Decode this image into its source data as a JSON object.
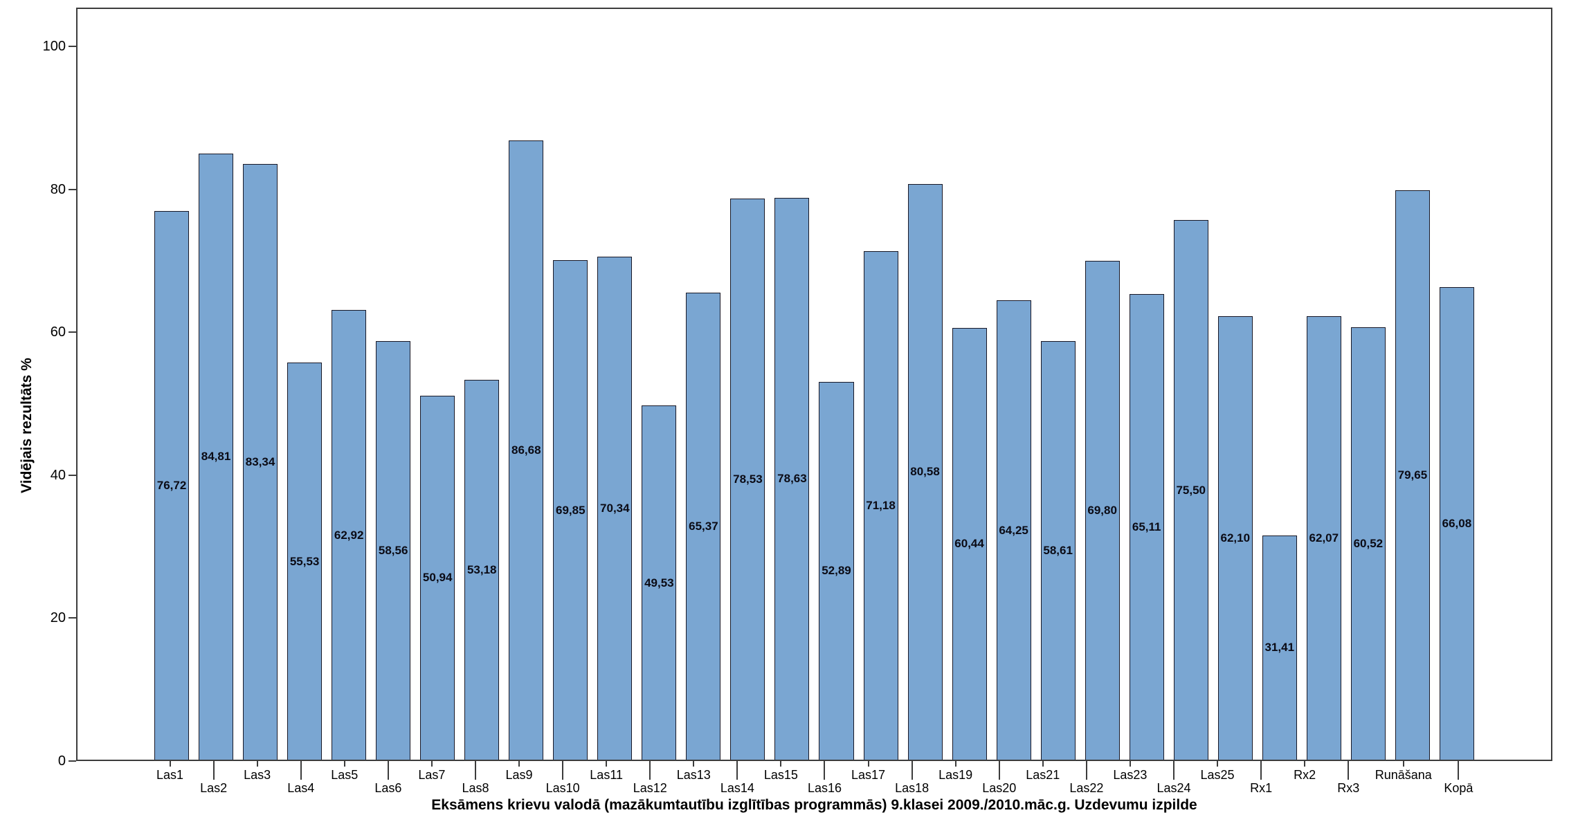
{
  "chart_data": {
    "type": "bar",
    "title": "",
    "xlabel": "Eksāmens krievu valodā (mazākumtautību izglītības programmās) 9.klasei 2009./2010.māc.g. Uzdevumu izpilde",
    "ylabel": "Vidējais rezultāts %",
    "categories": [
      "Las1",
      "Las2",
      "Las3",
      "Las4",
      "Las5",
      "Las6",
      "Las7",
      "Las8",
      "Las9",
      "Las10",
      "Las11",
      "Las12",
      "Las13",
      "Las14",
      "Las15",
      "Las16",
      "Las17",
      "Las18",
      "Las19",
      "Las20",
      "Las21",
      "Las22",
      "Las23",
      "Las24",
      "Las25",
      "Rx1",
      "Rx2",
      "Rx3",
      "Runāšana",
      "Kopā"
    ],
    "values": [
      76.72,
      84.81,
      83.34,
      55.53,
      62.92,
      58.56,
      50.94,
      53.18,
      86.68,
      69.85,
      70.34,
      49.53,
      65.37,
      78.53,
      78.63,
      52.89,
      71.18,
      80.58,
      60.44,
      64.25,
      58.61,
      69.8,
      65.11,
      75.5,
      62.1,
      31.41,
      62.07,
      60.52,
      79.65,
      66.08
    ],
    "value_labels": [
      "76,72",
      "84,81",
      "83,34",
      "55,53",
      "62,92",
      "58,56",
      "50,94",
      "53,18",
      "86,68",
      "69,85",
      "70,34",
      "49,53",
      "65,37",
      "78,53",
      "78,63",
      "52,89",
      "71,18",
      "80,58",
      "60,44",
      "64,25",
      "58,61",
      "69,80",
      "65,11",
      "75,50",
      "62,10",
      "31,41",
      "62,07",
      "60,52",
      "79,65",
      "66,08"
    ],
    "yticks": [
      0,
      20,
      40,
      60,
      80,
      100
    ],
    "ylim": [
      0,
      105.4
    ],
    "grid": false,
    "legend": false,
    "colors": {
      "bar_fill": "#7AA6D2",
      "bar_stroke": "#181826",
      "frame": "#3C3C3C",
      "value_label": "#0B0B15",
      "text": "#000000",
      "background": "#FFFFFF"
    }
  }
}
